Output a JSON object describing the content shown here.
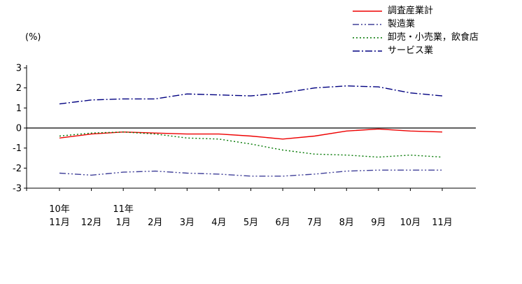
{
  "chart_data": {
    "type": "line",
    "title": "",
    "unit_label": "(%)",
    "xlabel": "",
    "ylabel": "(%)",
    "ylim": [
      -3,
      3
    ],
    "yticks": [
      3,
      2,
      1,
      0,
      -1,
      -2,
      -3
    ],
    "grid": false,
    "legend_position": "top-right",
    "categories": [
      "11月",
      "12月",
      "1月",
      "2月",
      "3月",
      "4月",
      "5月",
      "6月",
      "7月",
      "8月",
      "9月",
      "10月",
      "11月"
    ],
    "year_markers": [
      {
        "index": 0,
        "label": "10年"
      },
      {
        "index": 2,
        "label": "11年"
      }
    ],
    "series": [
      {
        "name": "調査産業計",
        "color": "#ee0000",
        "dash": "",
        "values": [
          -0.5,
          -0.3,
          -0.2,
          -0.25,
          -0.3,
          -0.3,
          -0.4,
          -0.55,
          -0.4,
          -0.15,
          -0.05,
          -0.15,
          -0.2
        ]
      },
      {
        "name": "製造業",
        "color": "#404099",
        "dash": "9 3 2 3 2 3",
        "values": [
          -2.25,
          -2.35,
          -2.2,
          -2.15,
          -2.25,
          -2.3,
          -2.4,
          -2.4,
          -2.3,
          -2.15,
          -2.1,
          -2.1,
          -2.1
        ]
      },
      {
        "name": "卸売・小売業，飲食店",
        "color": "#007700",
        "dash": "2 3",
        "values": [
          -0.4,
          -0.25,
          -0.2,
          -0.3,
          -0.5,
          -0.55,
          -0.8,
          -1.1,
          -1.3,
          -1.35,
          -1.45,
          -1.35,
          -1.45
        ]
      },
      {
        "name": "サービス業",
        "color": "#000080",
        "dash": "10 3 2 3",
        "values": [
          1.2,
          1.4,
          1.45,
          1.45,
          1.7,
          1.65,
          1.6,
          1.75,
          2.0,
          2.1,
          2.05,
          1.75,
          1.6
        ]
      }
    ]
  }
}
